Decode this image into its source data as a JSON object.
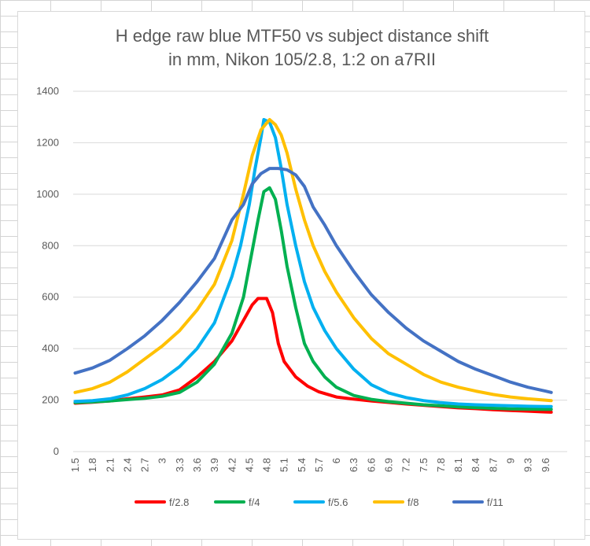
{
  "chart_data": {
    "type": "line",
    "title_lines": [
      "H edge raw blue MTF50 vs subject distance shift",
      "in mm, Nikon 105/2.8, 1:2 on a7RII"
    ],
    "xlabel": "",
    "ylabel": "",
    "x_tick_labels": [
      "1.5",
      "1.8",
      "2.1",
      "2.4",
      "2.7",
      "3",
      "3.3",
      "3.6",
      "3.9",
      "4.2",
      "4.5",
      "4.8",
      "5.1",
      "5.4",
      "5.7",
      "6",
      "6.3",
      "6.6",
      "6.9",
      "7.2",
      "7.5",
      "7.8",
      "8.1",
      "8.4",
      "8.7",
      "9",
      "9.3",
      "9.6"
    ],
    "xlim": [
      1.5,
      9.75
    ],
    "ylim": [
      0,
      1400
    ],
    "y_ticks": [
      0,
      200,
      400,
      600,
      800,
      1000,
      1200,
      1400
    ],
    "grid": "horizontal",
    "legend_position": "bottom",
    "series": [
      {
        "name": "f/2.8",
        "color": "#ff0000",
        "points": [
          [
            1.5,
            188
          ],
          [
            1.8,
            192
          ],
          [
            2.1,
            197
          ],
          [
            2.4,
            205
          ],
          [
            2.7,
            212
          ],
          [
            3.0,
            220
          ],
          [
            3.3,
            240
          ],
          [
            3.6,
            290
          ],
          [
            3.9,
            350
          ],
          [
            4.2,
            430
          ],
          [
            4.4,
            510
          ],
          [
            4.55,
            570
          ],
          [
            4.65,
            595
          ],
          [
            4.8,
            595
          ],
          [
            4.9,
            540
          ],
          [
            5.0,
            420
          ],
          [
            5.1,
            350
          ],
          [
            5.3,
            290
          ],
          [
            5.5,
            255
          ],
          [
            5.7,
            232
          ],
          [
            6.0,
            212
          ],
          [
            6.3,
            204
          ],
          [
            6.6,
            197
          ],
          [
            6.9,
            191
          ],
          [
            7.2,
            185
          ],
          [
            7.5,
            180
          ],
          [
            7.8,
            175
          ],
          [
            8.1,
            170
          ],
          [
            8.4,
            167
          ],
          [
            8.7,
            163
          ],
          [
            9.0,
            160
          ],
          [
            9.3,
            157
          ],
          [
            9.6,
            154
          ],
          [
            9.7,
            153
          ]
        ]
      },
      {
        "name": "f/4",
        "color": "#00b050",
        "points": [
          [
            1.5,
            190
          ],
          [
            1.8,
            193
          ],
          [
            2.1,
            197
          ],
          [
            2.4,
            202
          ],
          [
            2.7,
            207
          ],
          [
            3.0,
            215
          ],
          [
            3.3,
            230
          ],
          [
            3.6,
            270
          ],
          [
            3.9,
            340
          ],
          [
            4.2,
            460
          ],
          [
            4.4,
            600
          ],
          [
            4.55,
            780
          ],
          [
            4.65,
            900
          ],
          [
            4.75,
            1010
          ],
          [
            4.85,
            1025
          ],
          [
            4.95,
            980
          ],
          [
            5.05,
            860
          ],
          [
            5.15,
            720
          ],
          [
            5.3,
            560
          ],
          [
            5.45,
            420
          ],
          [
            5.6,
            350
          ],
          [
            5.8,
            290
          ],
          [
            6.0,
            250
          ],
          [
            6.3,
            218
          ],
          [
            6.6,
            203
          ],
          [
            6.9,
            194
          ],
          [
            7.2,
            188
          ],
          [
            7.5,
            182
          ],
          [
            7.8,
            178
          ],
          [
            8.1,
            174
          ],
          [
            8.4,
            171
          ],
          [
            8.7,
            168
          ],
          [
            9.0,
            166
          ],
          [
            9.3,
            165
          ],
          [
            9.6,
            164
          ],
          [
            9.7,
            164
          ]
        ]
      },
      {
        "name": "f/5.6",
        "color": "#00b0f0",
        "points": [
          [
            1.5,
            195
          ],
          [
            1.8,
            198
          ],
          [
            2.1,
            205
          ],
          [
            2.4,
            220
          ],
          [
            2.7,
            245
          ],
          [
            3.0,
            280
          ],
          [
            3.3,
            330
          ],
          [
            3.6,
            400
          ],
          [
            3.9,
            500
          ],
          [
            4.2,
            680
          ],
          [
            4.35,
            800
          ],
          [
            4.5,
            960
          ],
          [
            4.6,
            1100
          ],
          [
            4.7,
            1220
          ],
          [
            4.75,
            1290
          ],
          [
            4.85,
            1280
          ],
          [
            4.95,
            1220
          ],
          [
            5.05,
            1100
          ],
          [
            5.15,
            960
          ],
          [
            5.3,
            800
          ],
          [
            5.45,
            660
          ],
          [
            5.6,
            560
          ],
          [
            5.8,
            470
          ],
          [
            6.0,
            400
          ],
          [
            6.3,
            320
          ],
          [
            6.6,
            260
          ],
          [
            6.9,
            228
          ],
          [
            7.2,
            210
          ],
          [
            7.5,
            198
          ],
          [
            7.8,
            190
          ],
          [
            8.1,
            185
          ],
          [
            8.4,
            182
          ],
          [
            8.7,
            180
          ],
          [
            9.0,
            178
          ],
          [
            9.3,
            176
          ],
          [
            9.6,
            175
          ],
          [
            9.7,
            175
          ]
        ]
      },
      {
        "name": "f/8",
        "color": "#ffc000",
        "points": [
          [
            1.5,
            230
          ],
          [
            1.8,
            245
          ],
          [
            2.1,
            270
          ],
          [
            2.4,
            310
          ],
          [
            2.7,
            360
          ],
          [
            3.0,
            410
          ],
          [
            3.3,
            470
          ],
          [
            3.6,
            550
          ],
          [
            3.9,
            650
          ],
          [
            4.2,
            820
          ],
          [
            4.4,
            1000
          ],
          [
            4.55,
            1150
          ],
          [
            4.7,
            1250
          ],
          [
            4.85,
            1290
          ],
          [
            4.95,
            1270
          ],
          [
            5.05,
            1230
          ],
          [
            5.15,
            1160
          ],
          [
            5.3,
            1020
          ],
          [
            5.45,
            900
          ],
          [
            5.6,
            800
          ],
          [
            5.8,
            700
          ],
          [
            6.0,
            620
          ],
          [
            6.3,
            520
          ],
          [
            6.6,
            440
          ],
          [
            6.9,
            380
          ],
          [
            7.2,
            340
          ],
          [
            7.5,
            300
          ],
          [
            7.8,
            270
          ],
          [
            8.1,
            250
          ],
          [
            8.4,
            235
          ],
          [
            8.7,
            222
          ],
          [
            9.0,
            212
          ],
          [
            9.3,
            205
          ],
          [
            9.6,
            200
          ],
          [
            9.7,
            198
          ]
        ]
      },
      {
        "name": "f/11",
        "color": "#4472c4",
        "points": [
          [
            1.5,
            305
          ],
          [
            1.8,
            325
          ],
          [
            2.1,
            355
          ],
          [
            2.4,
            400
          ],
          [
            2.7,
            450
          ],
          [
            3.0,
            510
          ],
          [
            3.3,
            580
          ],
          [
            3.6,
            660
          ],
          [
            3.9,
            750
          ],
          [
            4.2,
            900
          ],
          [
            4.4,
            960
          ],
          [
            4.55,
            1040
          ],
          [
            4.7,
            1080
          ],
          [
            4.85,
            1100
          ],
          [
            5.0,
            1100
          ],
          [
            5.15,
            1095
          ],
          [
            5.3,
            1075
          ],
          [
            5.45,
            1030
          ],
          [
            5.6,
            950
          ],
          [
            5.8,
            880
          ],
          [
            6.0,
            800
          ],
          [
            6.3,
            700
          ],
          [
            6.6,
            610
          ],
          [
            6.9,
            540
          ],
          [
            7.2,
            480
          ],
          [
            7.5,
            430
          ],
          [
            7.8,
            390
          ],
          [
            8.1,
            350
          ],
          [
            8.4,
            320
          ],
          [
            8.7,
            295
          ],
          [
            9.0,
            270
          ],
          [
            9.3,
            250
          ],
          [
            9.6,
            235
          ],
          [
            9.7,
            230
          ]
        ]
      }
    ]
  }
}
